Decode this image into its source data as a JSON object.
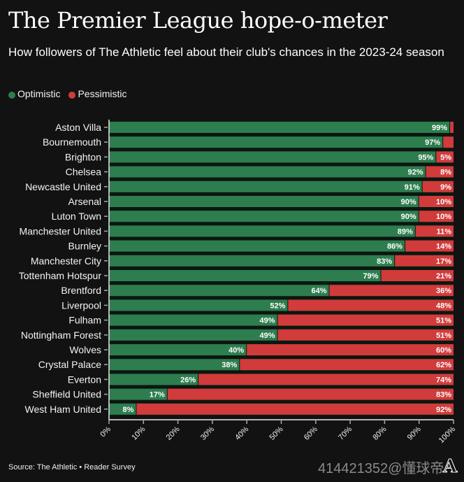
{
  "header": {
    "title": "The Premier League hope-o-meter",
    "subtitle": "How followers of The Athletic feel about their club's chances in the 2023-24 season"
  },
  "legend": [
    {
      "label": "Optimistic",
      "color": "#2e7d4f"
    },
    {
      "label": "Pessimistic",
      "color": "#d13b3b"
    }
  ],
  "chart_data": {
    "type": "bar",
    "orientation": "horizontal",
    "stacked": true,
    "title": "The Premier League hope-o-meter",
    "subtitle": "How followers of The Athletic feel about their club's chances in the 2023-24 season",
    "xlabel": "",
    "ylabel": "",
    "xlim": [
      0,
      100
    ],
    "x_ticks": [
      "0%",
      "10%",
      "20%",
      "30%",
      "40%",
      "50%",
      "60%",
      "70%",
      "80%",
      "90%",
      "100%"
    ],
    "legend_position": "top-left",
    "grid": false,
    "categories": [
      "Aston Villa",
      "Bournemouth",
      "Brighton",
      "Chelsea",
      "Newcastle United",
      "Arsenal",
      "Luton Town",
      "Manchester United",
      "Burnley",
      "Manchester City",
      "Tottenham Hotspur",
      "Brentford",
      "Liverpool",
      "Fulham",
      "Nottingham Forest",
      "Wolves",
      "Crystal Palace",
      "Everton",
      "Sheffield United",
      "West Ham United"
    ],
    "series": [
      {
        "name": "Optimistic",
        "color": "#2e7d4f",
        "values": [
          99,
          97,
          95,
          92,
          91,
          90,
          90,
          89,
          86,
          83,
          79,
          64,
          52,
          49,
          49,
          40,
          38,
          26,
          17,
          8
        ],
        "labels": [
          "99%",
          "97%",
          "95%",
          "92%",
          "91%",
          "90%",
          "90%",
          "89%",
          "86%",
          "83%",
          "79%",
          "64%",
          "52%",
          "49%",
          "49%",
          "40%",
          "38%",
          "26%",
          "17%",
          "8%"
        ]
      },
      {
        "name": "Pessimistic",
        "color": "#d13b3b",
        "values": [
          1,
          3,
          5,
          8,
          9,
          10,
          10,
          11,
          14,
          17,
          21,
          36,
          48,
          51,
          51,
          60,
          62,
          74,
          83,
          92
        ],
        "labels": [
          "",
          "",
          "5%",
          "8%",
          "9%",
          "10%",
          "10%",
          "11%",
          "14%",
          "17%",
          "21%",
          "36%",
          "48%",
          "51%",
          "51%",
          "60%",
          "62%",
          "74%",
          "83%",
          "92%"
        ]
      }
    ]
  },
  "footer": {
    "source": "Source: The Athletic • Reader Survey",
    "watermark": "414421352@懂球帝",
    "logo": "A"
  }
}
